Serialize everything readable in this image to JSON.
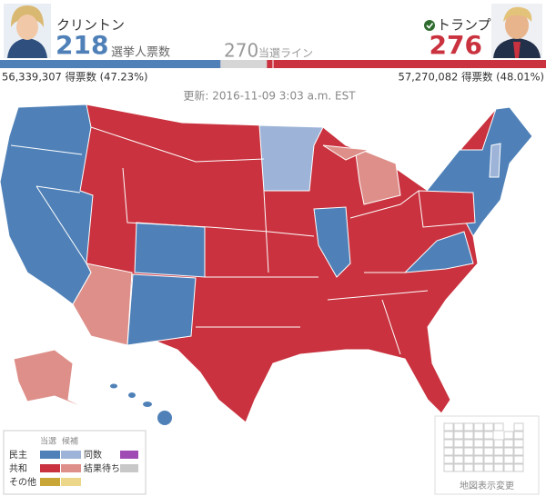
{
  "header": {
    "clinton": {
      "name": "クリントン",
      "electoral_votes": 218,
      "popular_vote": "56,339,307 得票数 (47.23%)"
    },
    "trump": {
      "name": "トランプ",
      "electoral_votes": 276,
      "popular_vote": "57,270,082 得票数 (48.01%)"
    },
    "electoral_votes_label": "選挙人票数",
    "threshold": 270,
    "threshold_label": "当選ライン"
  },
  "updated": "更新: 2016-11-09 3:03 a.m. EST",
  "legend": {
    "won": "当選",
    "leading": "候補",
    "rows": [
      "民主",
      "共和",
      "その他"
    ],
    "tie": "同数",
    "pending": "結果待ち"
  },
  "map_toggle": "地図表示変更"
}
